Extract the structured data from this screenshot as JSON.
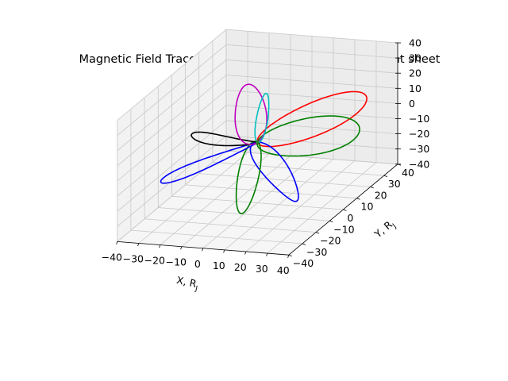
{
  "chart_data": {
    "type": "line3d",
    "title": "Magnetic Field Trace using VIP4 model, including current sheet",
    "xlabel": "X, R",
    "xlabel_sub": "J",
    "ylabel": "Y, R",
    "ylabel_sub": "J",
    "zlabel": "",
    "xlim": [
      -40,
      40
    ],
    "ylim": [
      -40,
      40
    ],
    "zlim": [
      -40,
      40
    ],
    "xticks": [
      "−40",
      "−30",
      "−20",
      "−10",
      "0",
      "10",
      "20",
      "30",
      "40"
    ],
    "yticks": [
      "−40",
      "−30",
      "−20",
      "−10",
      "0",
      "10",
      "20",
      "30",
      "40"
    ],
    "zticks": [
      "−40",
      "−30",
      "−20",
      "−10",
      "0",
      "10",
      "20",
      "30",
      "40"
    ],
    "grid": true,
    "series": [
      {
        "color": "#ff0000",
        "apex": {
          "x": 30,
          "y": 33,
          "z": 8
        },
        "tilt": 9,
        "width": 0.3
      },
      {
        "color": "#008000",
        "apex": {
          "x": 40,
          "y": 12,
          "z": 3
        },
        "tilt": 10,
        "width": 0.35
      },
      {
        "color": "#0000ff",
        "apex": {
          "x": 38,
          "y": -33,
          "z": -10
        },
        "tilt": -5,
        "width": 0.3
      },
      {
        "color": "#008000",
        "apex": {
          "x": 7,
          "y": -25,
          "z": -26
        },
        "tilt": -9,
        "width": 0.3
      },
      {
        "color": "#0000ff",
        "apex": {
          "x": -35,
          "y": -16,
          "z": -18
        },
        "tilt": 8,
        "width": 0.3
      },
      {
        "color": "#000000",
        "apex": {
          "x": -38,
          "y": 12,
          "z": -10
        },
        "tilt": 9,
        "width": 0.3
      },
      {
        "color": "#bf00bf",
        "apex": {
          "x": -28,
          "y": 33,
          "z": 8
        },
        "tilt": -8,
        "width": 0.3
      },
      {
        "color": "#00bfbf",
        "apex": {
          "x": -5,
          "y": 15,
          "z": 20
        },
        "tilt": 4,
        "width": 0.3
      }
    ]
  }
}
